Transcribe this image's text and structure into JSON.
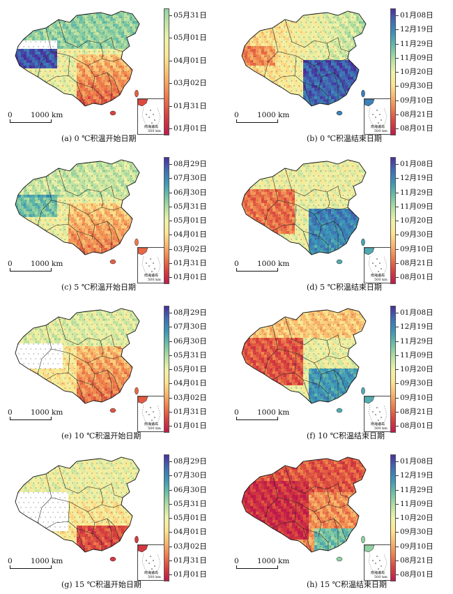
{
  "colorbars": {
    "start": [
      "08月29日",
      "07月30日",
      "06月30日",
      "05月31日",
      "05月01日",
      "04月01日",
      "03月02日",
      "01月31日",
      "01月01日"
    ],
    "start_a": [
      "05月31日",
      "05月01日",
      "04月01日",
      "03月02日",
      "01月31日",
      "01月01日"
    ],
    "end": [
      "01月08日",
      "12月19日",
      "11月29日",
      "11月09日",
      "10月20日",
      "09月30日",
      "09月10日",
      "08月21日",
      "08月01日"
    ]
  },
  "scale": {
    "zero": "0",
    "distance": "1000 km"
  },
  "inset": {
    "label": "南海诸岛",
    "scale": "500 km"
  },
  "panels": [
    {
      "id": "a",
      "caption": "(a) 0 ℃积温开始日期",
      "kind": "start_a",
      "palette": "start0"
    },
    {
      "id": "b",
      "caption": "(b) 0 ℃积温结束日期",
      "kind": "end",
      "palette": "end0"
    },
    {
      "id": "c",
      "caption": "(c) 5 ℃积温开始日期",
      "kind": "start",
      "palette": "start5"
    },
    {
      "id": "d",
      "caption": "(d) 5 ℃积温结束日期",
      "kind": "end",
      "palette": "end5"
    },
    {
      "id": "e",
      "caption": "(e) 10 ℃积温开始日期",
      "kind": "start",
      "palette": "start10"
    },
    {
      "id": "f",
      "caption": "(f) 10 ℃积温结束日期",
      "kind": "end",
      "palette": "end10"
    },
    {
      "id": "g",
      "caption": "(g) 15 ℃积温开始日期",
      "kind": "start",
      "palette": "start15"
    },
    {
      "id": "h",
      "caption": "(h) 15 ℃积温结束日期",
      "kind": "end",
      "palette": "end15"
    }
  ],
  "colors": {
    "ramp": [
      "#4a2fa0",
      "#3f6fb5",
      "#3b97b8",
      "#6cc0a5",
      "#b3dfa0",
      "#eef2a8",
      "#fde58f",
      "#f9b56a",
      "#ef7b4a",
      "#d9413e",
      "#c0184c"
    ]
  }
}
